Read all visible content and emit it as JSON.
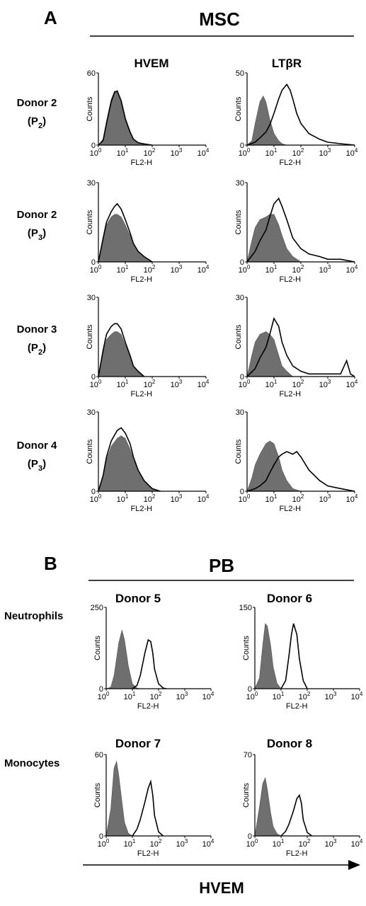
{
  "section_a": {
    "letter": "A",
    "title": "MSC",
    "column_headers": [
      "HVEM",
      "LTβR"
    ],
    "rows": [
      {
        "donor": "Donor 2",
        "passage": "P",
        "passage_sub": "2"
      },
      {
        "donor": "Donor 2",
        "passage": "P",
        "passage_sub": "3"
      },
      {
        "donor": "Donor 3",
        "passage": "P",
        "passage_sub": "2"
      },
      {
        "donor": "Donor 4",
        "passage": "P",
        "passage_sub": "3"
      }
    ]
  },
  "section_b": {
    "letter": "B",
    "title": "PB",
    "row_labels": [
      "Neutrophils",
      "Monocytes"
    ],
    "column_donors": [
      [
        "Donor 5",
        "Donor 6"
      ],
      [
        "Donor 7",
        "Donor 8"
      ]
    ]
  },
  "bottom_axis_label": "HVEM",
  "chart_data": [
    {
      "type": "histogram",
      "panel": "A",
      "row": "Donor 2 (P2)",
      "marker": "HVEM",
      "xlabel": "FL2-H",
      "ylabel": "Counts",
      "xscale": "log",
      "xlim": [
        1,
        10000
      ],
      "ylim": [
        0,
        60
      ],
      "y_ticks": [
        0,
        60
      ],
      "x_tick_labels": [
        "10^0",
        "10^1",
        "10^2",
        "10^3",
        "10^4"
      ],
      "series": [
        {
          "role": "control",
          "style": "filled-gray",
          "x": [
            1,
            1.5,
            2,
            3,
            4,
            5,
            7,
            10,
            15,
            20,
            30,
            50,
            100
          ],
          "y": [
            0,
            5,
            20,
            38,
            45,
            44,
            35,
            20,
            10,
            5,
            2,
            1,
            0
          ]
        },
        {
          "role": "stained",
          "style": "black-line",
          "x": [
            1,
            1.5,
            2,
            3,
            4,
            5,
            7,
            10,
            15,
            20,
            30,
            50,
            100
          ],
          "y": [
            0,
            4,
            18,
            36,
            44,
            45,
            37,
            22,
            11,
            5,
            2,
            1,
            0
          ]
        }
      ]
    },
    {
      "type": "histogram",
      "panel": "A",
      "row": "Donor 2 (P2)",
      "marker": "LTβR",
      "xlabel": "FL2-H",
      "ylabel": "Counts",
      "xscale": "log",
      "xlim": [
        1,
        10000
      ],
      "ylim": [
        0,
        50
      ],
      "y_ticks": [
        0,
        50
      ],
      "x_tick_labels": [
        "10^0",
        "10^1",
        "10^2",
        "10^3",
        "10^4"
      ],
      "series": [
        {
          "role": "control",
          "style": "filled-gray",
          "x": [
            1,
            1.5,
            2,
            3,
            4,
            5,
            7,
            10,
            15,
            20,
            30,
            50
          ],
          "y": [
            0,
            3,
            15,
            30,
            34,
            30,
            18,
            8,
            3,
            1,
            0,
            0
          ]
        },
        {
          "role": "stained",
          "style": "black-line",
          "x": [
            1,
            2,
            3,
            5,
            7,
            10,
            15,
            20,
            30,
            40,
            50,
            70,
            100,
            200,
            500,
            1000,
            3000,
            10000
          ],
          "y": [
            0,
            2,
            5,
            9,
            14,
            22,
            32,
            38,
            42,
            38,
            32,
            22,
            15,
            8,
            4,
            2,
            1,
            0
          ]
        }
      ]
    },
    {
      "type": "histogram",
      "panel": "A",
      "row": "Donor 2 (P3)",
      "marker": "HVEM",
      "xlabel": "FL2-H",
      "ylabel": "Counts",
      "xscale": "log",
      "xlim": [
        1,
        10000
      ],
      "ylim": [
        0,
        30
      ],
      "y_ticks": [
        0,
        30
      ],
      "x_tick_labels": [
        "10^0",
        "10^1",
        "10^2",
        "10^3",
        "10^4"
      ],
      "series": [
        {
          "role": "control",
          "style": "filled-gray",
          "x": [
            1,
            1.5,
            2,
            3,
            4,
            5,
            7,
            10,
            15,
            20,
            30,
            50,
            100
          ],
          "y": [
            0,
            8,
            14,
            17,
            18,
            18,
            17,
            14,
            10,
            7,
            4,
            2,
            0
          ]
        },
        {
          "role": "stained",
          "style": "black-line",
          "x": [
            1,
            1.5,
            2,
            3,
            4,
            5,
            7,
            10,
            15,
            20,
            30,
            50,
            100
          ],
          "y": [
            0,
            9,
            15,
            19,
            21,
            22,
            20,
            16,
            11,
            7,
            4,
            2,
            0
          ]
        }
      ]
    },
    {
      "type": "histogram",
      "panel": "A",
      "row": "Donor 2 (P3)",
      "marker": "LTβR",
      "xlabel": "FL2-H",
      "ylabel": "Counts",
      "xscale": "log",
      "xlim": [
        1,
        10000
      ],
      "ylim": [
        0,
        30
      ],
      "y_ticks": [
        0,
        30
      ],
      "x_tick_labels": [
        "10^0",
        "10^1",
        "10^2",
        "10^3",
        "10^4"
      ],
      "series": [
        {
          "role": "control",
          "style": "filled-gray",
          "x": [
            1,
            1.5,
            2,
            3,
            5,
            7,
            10,
            15,
            20,
            30,
            50,
            100
          ],
          "y": [
            0,
            8,
            13,
            16,
            17,
            18,
            18,
            14,
            10,
            5,
            2,
            0
          ]
        },
        {
          "role": "stained",
          "style": "black-line",
          "x": [
            1,
            2,
            3,
            5,
            7,
            10,
            15,
            20,
            30,
            50,
            100,
            200,
            500,
            1000,
            3000,
            10000
          ],
          "y": [
            0,
            4,
            8,
            12,
            17,
            22,
            24,
            21,
            16,
            9,
            5,
            3,
            2,
            1,
            1,
            0
          ]
        }
      ]
    },
    {
      "type": "histogram",
      "panel": "A",
      "row": "Donor 3 (P2)",
      "marker": "HVEM",
      "xlabel": "FL2-H",
      "ylabel": "Counts",
      "xscale": "log",
      "xlim": [
        1,
        10000
      ],
      "ylim": [
        0,
        30
      ],
      "y_ticks": [
        0,
        30
      ],
      "x_tick_labels": [
        "10^0",
        "10^1",
        "10^2",
        "10^3",
        "10^4"
      ],
      "series": [
        {
          "role": "control",
          "style": "filled-gray",
          "x": [
            1,
            1.5,
            2,
            3,
            4,
            5,
            7,
            10,
            15,
            20,
            30,
            50
          ],
          "y": [
            0,
            9,
            14,
            16,
            17,
            17,
            16,
            12,
            8,
            4,
            2,
            0
          ]
        },
        {
          "role": "stained",
          "style": "black-line",
          "x": [
            1,
            1.5,
            2,
            3,
            4,
            5,
            7,
            10,
            15,
            20,
            30,
            50
          ],
          "y": [
            0,
            10,
            16,
            19,
            20,
            20,
            18,
            13,
            8,
            4,
            2,
            0
          ]
        }
      ]
    },
    {
      "type": "histogram",
      "panel": "A",
      "row": "Donor 3 (P2)",
      "marker": "LTβR",
      "xlabel": "FL2-H",
      "ylabel": "Counts",
      "xscale": "log",
      "xlim": [
        1,
        10000
      ],
      "ylim": [
        0,
        30
      ],
      "y_ticks": [
        0,
        30
      ],
      "x_tick_labels": [
        "10^0",
        "10^1",
        "10^2",
        "10^3",
        "10^4"
      ],
      "series": [
        {
          "role": "control",
          "style": "filled-gray",
          "x": [
            1,
            1.5,
            2,
            3,
            5,
            7,
            10,
            15,
            20,
            30,
            50
          ],
          "y": [
            0,
            8,
            13,
            16,
            17,
            16,
            14,
            8,
            4,
            2,
            0
          ]
        },
        {
          "role": "stained",
          "style": "black-line",
          "x": [
            1,
            2,
            3,
            5,
            7,
            10,
            15,
            20,
            30,
            50,
            100,
            200,
            500,
            1000,
            3000,
            5000,
            7000,
            10000
          ],
          "y": [
            0,
            3,
            7,
            11,
            16,
            22,
            19,
            13,
            8,
            4,
            2,
            1,
            1,
            1,
            1,
            6,
            1,
            0
          ]
        }
      ]
    },
    {
      "type": "histogram",
      "panel": "A",
      "row": "Donor 4 (P3)",
      "marker": "HVEM",
      "xlabel": "FL2-H",
      "ylabel": "Counts",
      "xscale": "log",
      "xlim": [
        1,
        10000
      ],
      "ylim": [
        0,
        30
      ],
      "y_ticks": [
        0,
        30
      ],
      "x_tick_labels": [
        "10^0",
        "10^1",
        "10^2",
        "10^3",
        "10^4"
      ],
      "series": [
        {
          "role": "control",
          "style": "filled-gray",
          "x": [
            1,
            1.5,
            2,
            3,
            5,
            7,
            10,
            15,
            20,
            30,
            50,
            100,
            200
          ],
          "y": [
            0,
            6,
            12,
            17,
            20,
            21,
            20,
            16,
            12,
            8,
            4,
            1,
            0
          ]
        },
        {
          "role": "stained",
          "style": "black-line",
          "x": [
            1,
            1.5,
            2,
            3,
            5,
            7,
            10,
            15,
            20,
            30,
            50,
            100,
            200
          ],
          "y": [
            0,
            6,
            13,
            19,
            23,
            24,
            22,
            18,
            13,
            8,
            4,
            1,
            0
          ]
        }
      ]
    },
    {
      "type": "histogram",
      "panel": "A",
      "row": "Donor 4 (P3)",
      "marker": "LTβR",
      "xlabel": "FL2-H",
      "ylabel": "Counts",
      "xscale": "log",
      "xlim": [
        1,
        10000
      ],
      "ylim": [
        0,
        30
      ],
      "y_ticks": [
        0,
        30
      ],
      "x_tick_labels": [
        "10^0",
        "10^1",
        "10^2",
        "10^3",
        "10^4"
      ],
      "series": [
        {
          "role": "control",
          "style": "filled-gray",
          "x": [
            1,
            1.5,
            2,
            3,
            5,
            7,
            10,
            15,
            20,
            30,
            50,
            100
          ],
          "y": [
            0,
            5,
            10,
            14,
            18,
            19,
            18,
            13,
            8,
            4,
            1,
            0
          ]
        },
        {
          "role": "stained",
          "style": "black-line",
          "x": [
            1,
            2,
            3,
            5,
            7,
            10,
            15,
            20,
            30,
            50,
            70,
            100,
            200,
            500,
            1000,
            3000,
            10000
          ],
          "y": [
            0,
            1,
            2,
            4,
            7,
            10,
            13,
            14,
            15,
            14,
            15,
            13,
            8,
            4,
            2,
            1,
            0
          ]
        }
      ]
    },
    {
      "type": "histogram",
      "panel": "B",
      "row": "Neutrophils",
      "title": "Donor 5",
      "xlabel": "FL2-H",
      "ylabel": "Counts",
      "xscale": "log",
      "xlim": [
        1,
        10000
      ],
      "ylim": [
        0,
        250
      ],
      "y_ticks": [
        0,
        250
      ],
      "x_tick_labels": [
        "10^0",
        "10^1",
        "10^2",
        "10^3",
        "10^4"
      ],
      "series": [
        {
          "role": "control",
          "style": "filled-gray",
          "x": [
            1,
            1.5,
            2,
            3,
            4,
            5,
            7,
            10,
            15,
            20
          ],
          "y": [
            0,
            5,
            40,
            140,
            180,
            150,
            70,
            15,
            2,
            0
          ]
        },
        {
          "role": "stained",
          "style": "black-line",
          "x": [
            10,
            15,
            20,
            30,
            40,
            50,
            60,
            70,
            100,
            150,
            200
          ],
          "y": [
            0,
            10,
            40,
            110,
            150,
            145,
            110,
            60,
            15,
            2,
            0
          ]
        }
      ]
    },
    {
      "type": "histogram",
      "panel": "B",
      "row": "Neutrophils",
      "title": "Donor 6",
      "xlabel": "FL2-H",
      "ylabel": "Counts",
      "xscale": "log",
      "xlim": [
        1,
        10000
      ],
      "ylim": [
        0,
        150
      ],
      "y_ticks": [
        0,
        150
      ],
      "x_tick_labels": [
        "10^0",
        "10^1",
        "10^2",
        "10^3",
        "10^4"
      ],
      "series": [
        {
          "role": "control",
          "style": "filled-gray",
          "x": [
            1,
            1.5,
            2,
            2.5,
            3,
            4,
            5,
            7,
            10
          ],
          "y": [
            0,
            20,
            80,
            120,
            115,
            80,
            40,
            10,
            0
          ]
        },
        {
          "role": "stained",
          "style": "black-line",
          "x": [
            10,
            15,
            20,
            25,
            30,
            40,
            50,
            70,
            100
          ],
          "y": [
            0,
            15,
            60,
            100,
            120,
            100,
            55,
            15,
            0
          ]
        }
      ]
    },
    {
      "type": "histogram",
      "panel": "B",
      "row": "Monocytes",
      "title": "Donor 7",
      "xlabel": "FL2-H",
      "ylabel": "Counts",
      "xscale": "log",
      "xlim": [
        1,
        10000
      ],
      "ylim": [
        0,
        60
      ],
      "y_ticks": [
        0,
        60
      ],
      "x_tick_labels": [
        "10^0",
        "10^1",
        "10^2",
        "10^3",
        "10^4"
      ],
      "series": [
        {
          "role": "control",
          "style": "filled-gray",
          "x": [
            1,
            1.5,
            2,
            2.5,
            3,
            4,
            5,
            7,
            10
          ],
          "y": [
            0,
            20,
            50,
            55,
            45,
            25,
            10,
            2,
            0
          ]
        },
        {
          "role": "stained",
          "style": "black-line",
          "x": [
            10,
            15,
            20,
            30,
            40,
            50,
            60,
            70,
            100,
            150
          ],
          "y": [
            0,
            5,
            12,
            25,
            35,
            40,
            30,
            15,
            3,
            0
          ]
        }
      ]
    },
    {
      "type": "histogram",
      "panel": "B",
      "row": "Monocytes",
      "title": "Donor 8",
      "xlabel": "FL2-H",
      "ylabel": "Counts",
      "xscale": "log",
      "xlim": [
        1,
        10000
      ],
      "ylim": [
        0,
        70
      ],
      "y_ticks": [
        0,
        70
      ],
      "x_tick_labels": [
        "10^0",
        "10^1",
        "10^2",
        "10^3",
        "10^4"
      ],
      "series": [
        {
          "role": "control",
          "style": "filled-gray",
          "x": [
            1,
            1.5,
            2,
            2.5,
            3,
            4,
            5,
            7,
            10
          ],
          "y": [
            0,
            25,
            45,
            50,
            40,
            20,
            8,
            2,
            0
          ]
        },
        {
          "role": "stained",
          "style": "black-line",
          "x": [
            10,
            15,
            20,
            30,
            40,
            50,
            60,
            70,
            100,
            150
          ],
          "y": [
            0,
            4,
            10,
            22,
            32,
            35,
            28,
            14,
            3,
            0
          ]
        }
      ]
    }
  ]
}
